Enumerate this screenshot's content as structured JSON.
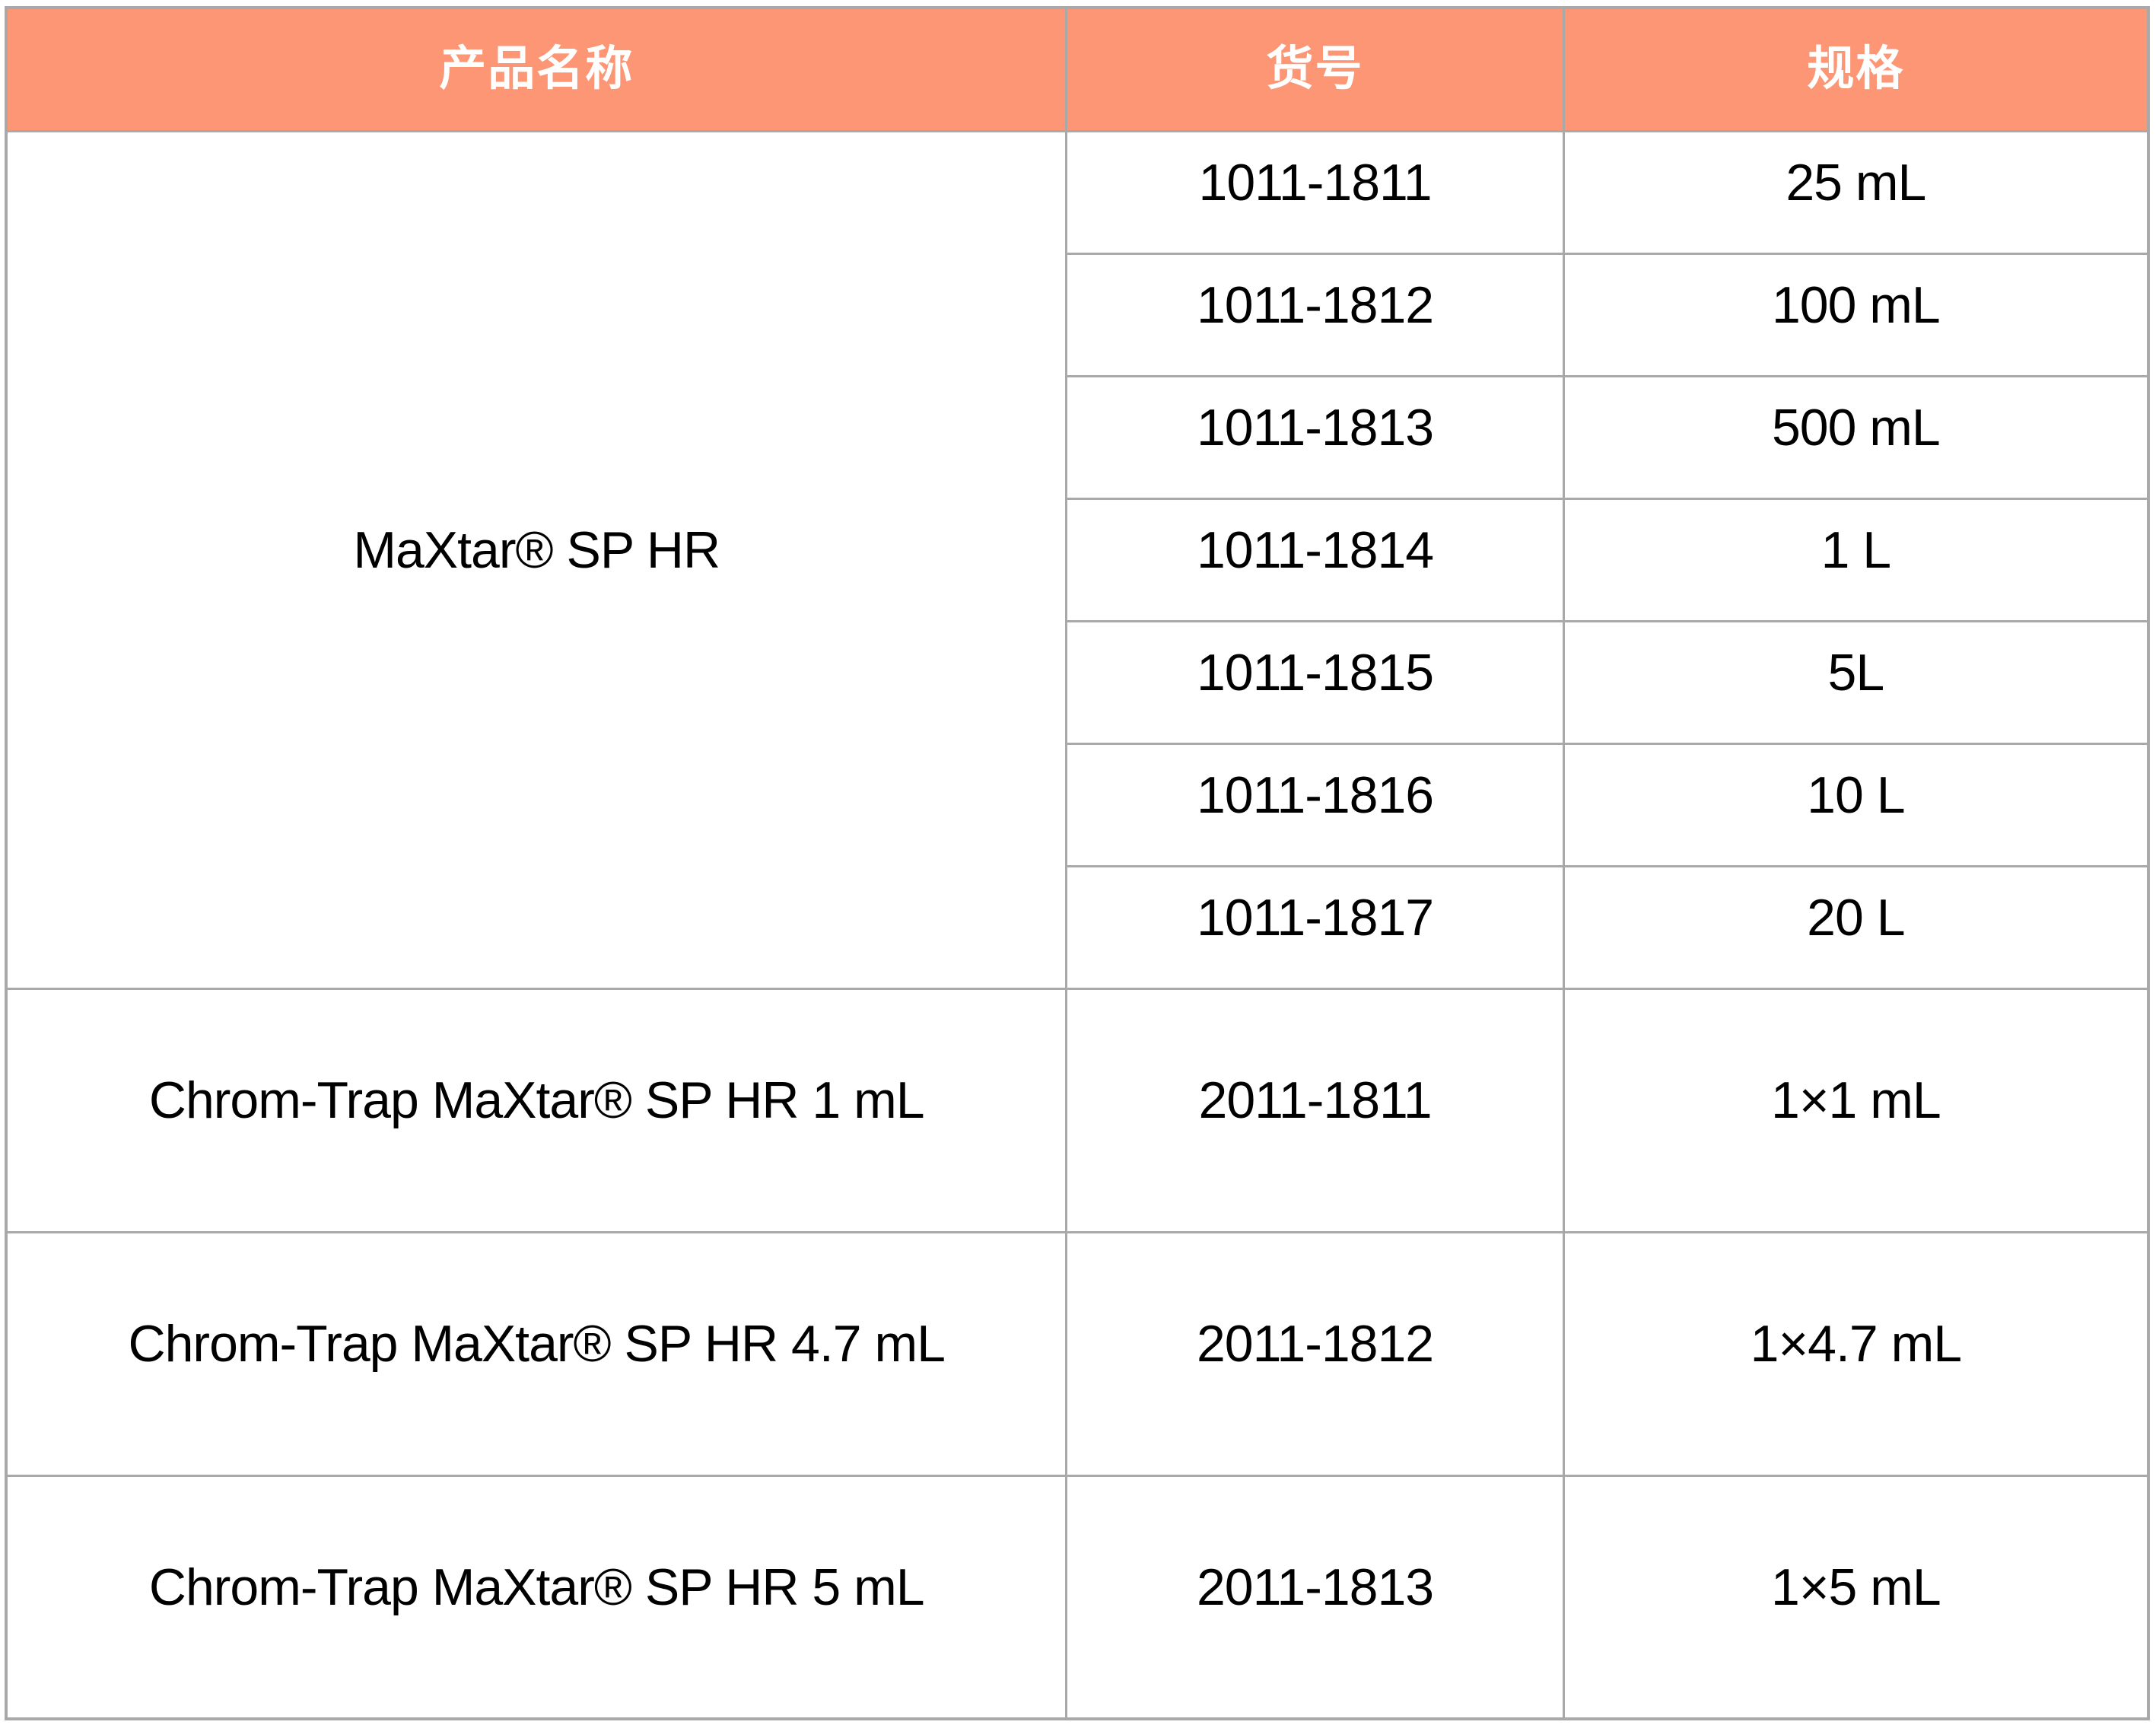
{
  "table": {
    "headers": [
      "产品名称",
      "货号",
      "规格"
    ],
    "products": [
      {
        "name": "MaXtar® SP HR",
        "variants": [
          {
            "catalog": "1011-1811",
            "spec": "25 mL"
          },
          {
            "catalog": "1011-1812",
            "spec": "100 mL"
          },
          {
            "catalog": "1011-1813",
            "spec": "500 mL"
          },
          {
            "catalog": "1011-1814",
            "spec": "1 L"
          },
          {
            "catalog": "1011-1815",
            "spec": "5L"
          },
          {
            "catalog": "1011-1816",
            "spec": "10 L"
          },
          {
            "catalog": "1011-1817",
            "spec": "20 L"
          }
        ]
      },
      {
        "name": "Chrom-Trap MaXtar® SP HR 1 mL",
        "variants": [
          {
            "catalog": "2011-1811",
            "spec": "1×1 mL"
          }
        ]
      },
      {
        "name": "Chrom-Trap MaXtar® SP HR 4.7 mL",
        "variants": [
          {
            "catalog": "2011-1812",
            "spec": "1×4.7 mL"
          }
        ]
      },
      {
        "name": "Chrom-Trap MaXtar® SP HR 5 mL",
        "variants": [
          {
            "catalog": "2011-1813",
            "spec": "1×5 mL"
          }
        ]
      }
    ],
    "colors": {
      "header_bg": "#FC9674",
      "header_text": "#FFFFFF",
      "border": "#A9A9A9",
      "body_text": "#000000",
      "body_bg": "#FFFFFF"
    }
  }
}
